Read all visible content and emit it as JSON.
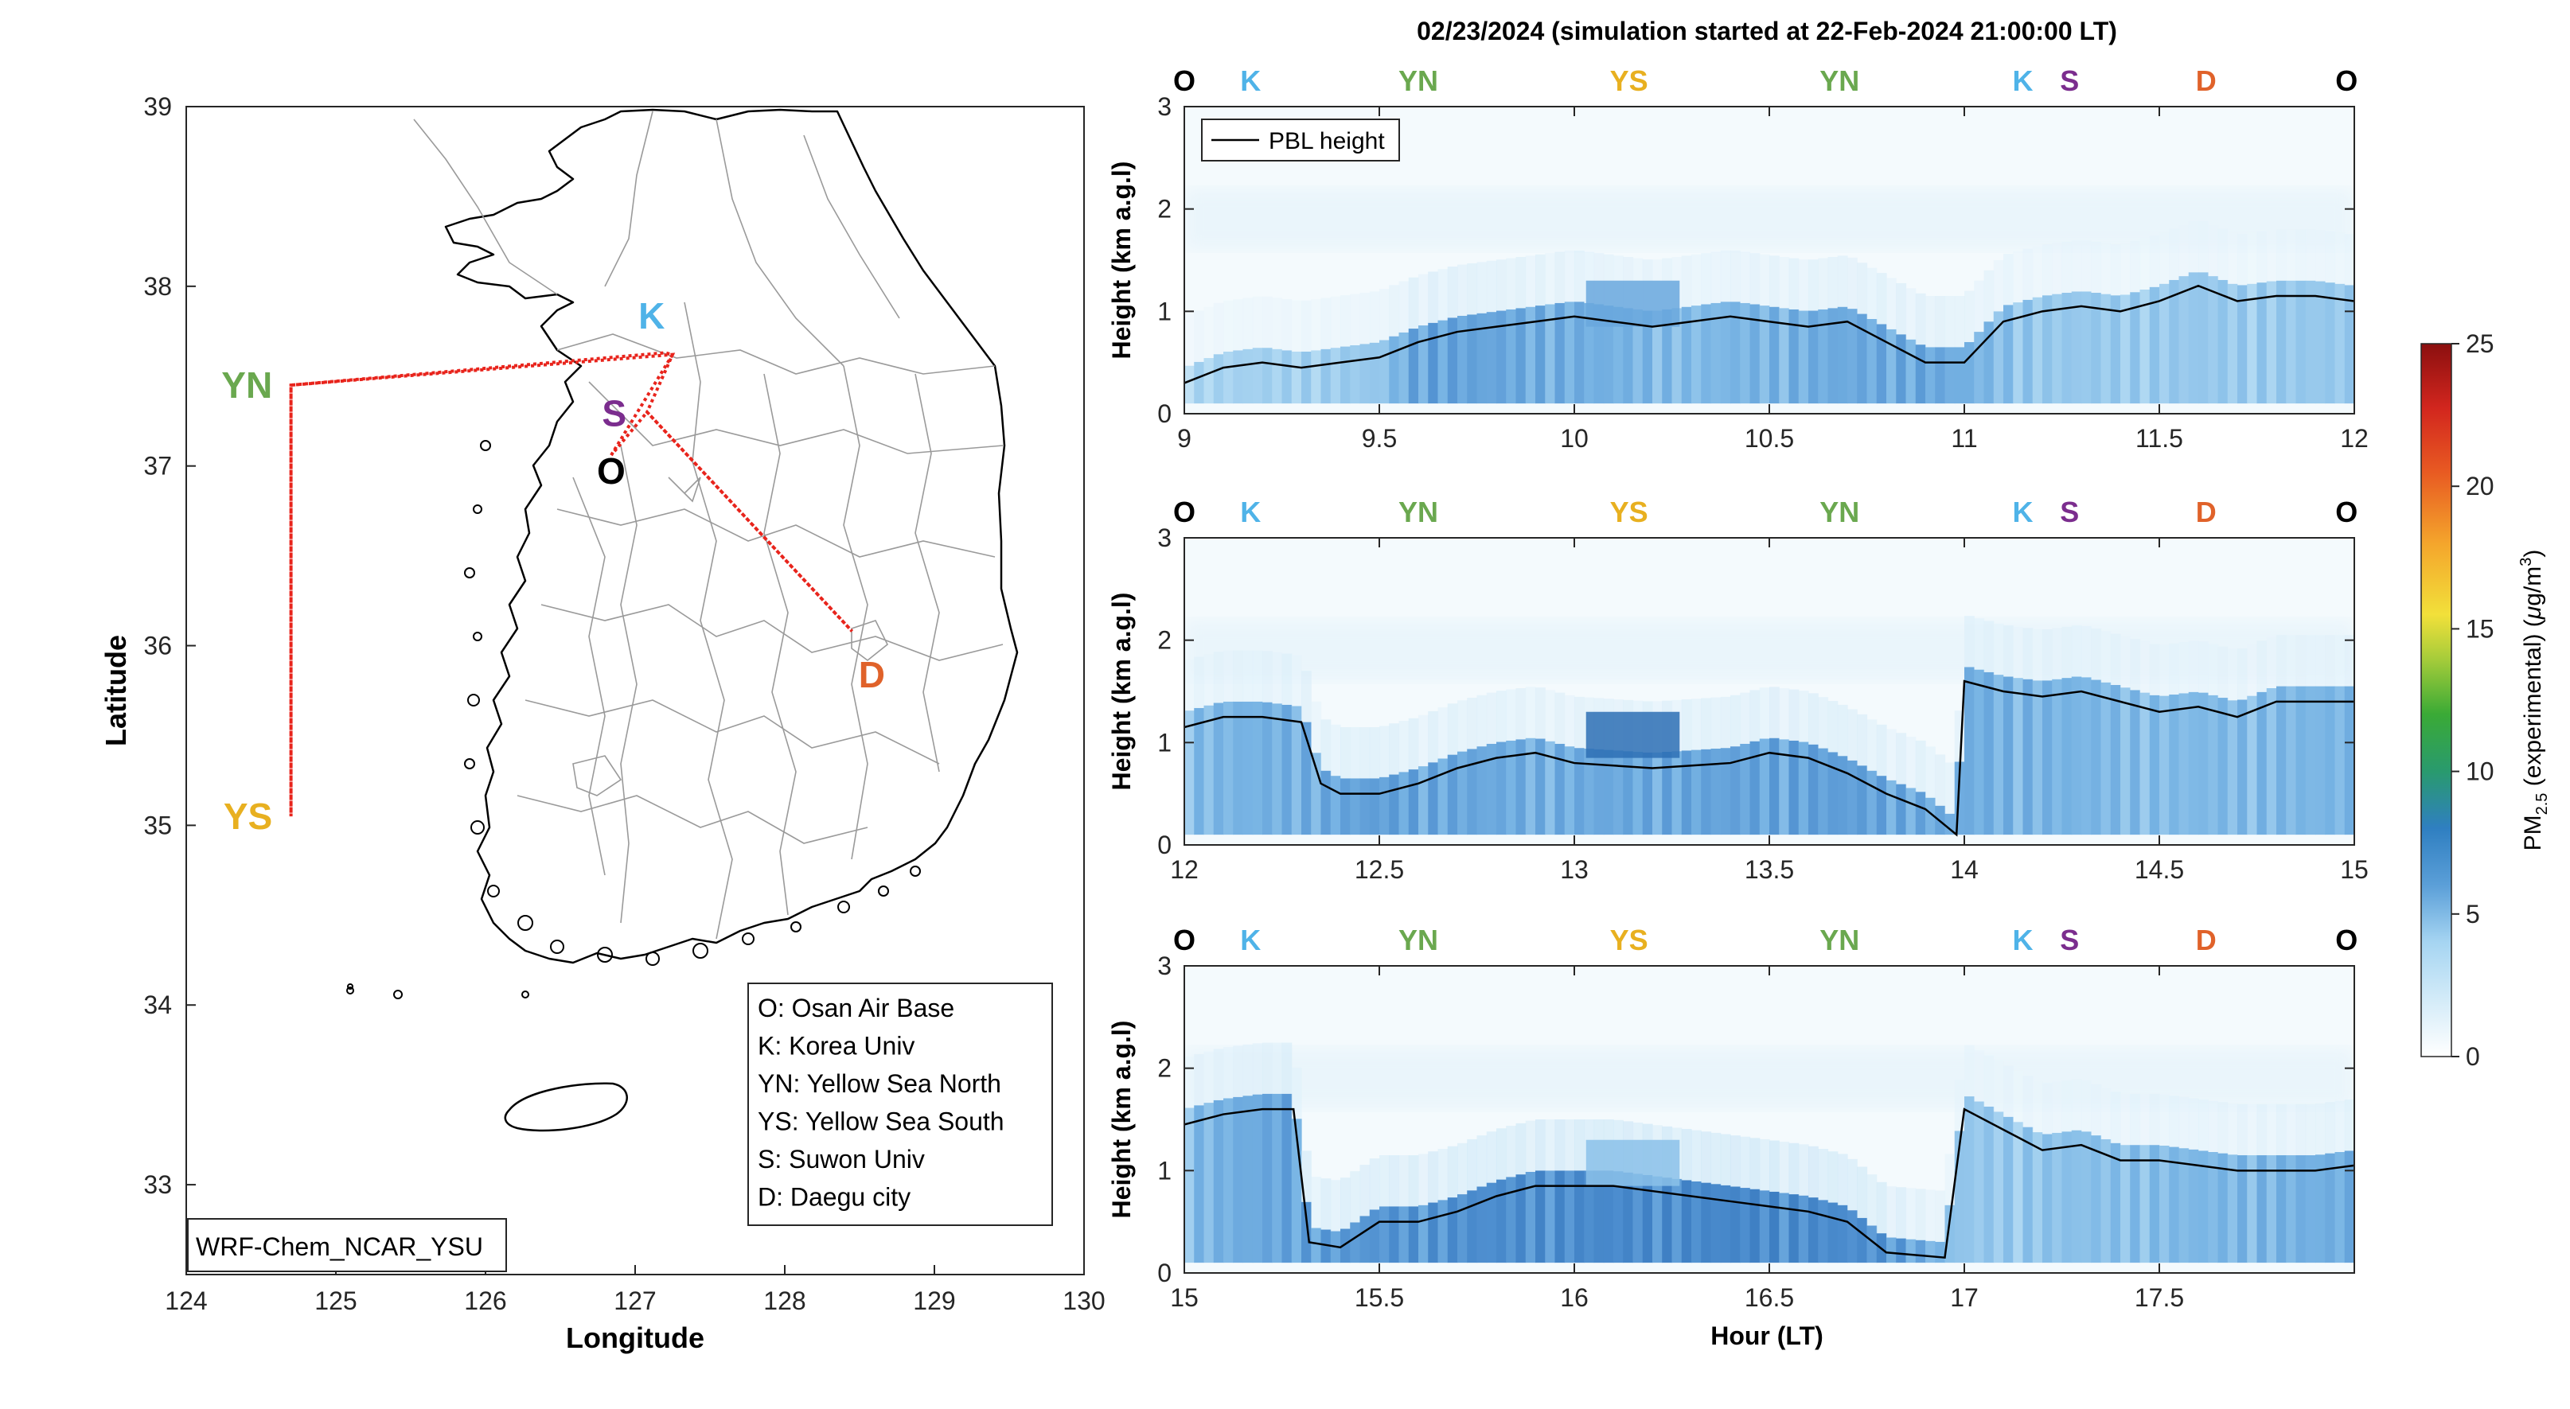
{
  "figure": {
    "title": "02/23/2024 (simulation started at 22-Feb-2024 21:00:00 LT)",
    "model_label": "WRF-Chem_NCAR_YSU"
  },
  "map": {
    "xlabel": "Longitude",
    "ylabel": "Latitude",
    "xlim": [
      124,
      130
    ],
    "ylim": [
      32.5,
      39
    ],
    "xticks": [
      "124",
      "125",
      "126",
      "127",
      "128",
      "129",
      "130"
    ],
    "yticks": [
      "33",
      "34",
      "35",
      "36",
      "37",
      "38",
      "39"
    ],
    "points": [
      {
        "code": "O",
        "lon": 126.84,
        "lat": 37.06,
        "color": "#000000"
      },
      {
        "code": "K",
        "lon": 127.11,
        "lat": 37.73,
        "color": "#4fb3e8"
      },
      {
        "code": "S",
        "lon": 126.86,
        "lat": 37.31,
        "color": "#7b2d8e"
      },
      {
        "code": "YN",
        "lon": 124.65,
        "lat": 37.45,
        "color": "#6aa84f"
      },
      {
        "code": "YS",
        "lon": 124.65,
        "lat": 35.05,
        "color": "#e8b020"
      },
      {
        "code": "D",
        "lon": 128.55,
        "lat": 35.9,
        "color": "#e0622a"
      }
    ],
    "track": [
      [
        126.84,
        37.06
      ],
      [
        127.25,
        37.62
      ],
      [
        127.2,
        37.63
      ],
      [
        124.7,
        37.45
      ],
      [
        124.7,
        35.05
      ],
      [
        124.7,
        37.45
      ],
      [
        127.25,
        37.62
      ],
      [
        127.08,
        37.3
      ],
      [
        128.45,
        36.08
      ],
      [
        127.08,
        37.3
      ],
      [
        126.84,
        37.06
      ]
    ],
    "legend": [
      "O: Osan Air Base",
      "K: Korea Univ",
      "YN: Yellow Sea North",
      "YS: Yellow Sea South",
      "S: Suwon Univ",
      "D: Daegu city"
    ]
  },
  "chart_data": {
    "type": "heatmap",
    "title": "02/23/2024 (simulation started at 22-Feb-2024 21:00:00 LT)",
    "ylabel": "Height (km a.g.l)",
    "xlabel": "Hour (LT)",
    "legend_entry": "PBL height",
    "colorbar": {
      "label_main": "PM",
      "label_sub": "2.5",
      "label_rest": " (experimental) (",
      "label_mu": "μ",
      "label_unit": "g/m",
      "label_exp": "3",
      "label_end": ")",
      "range": [
        0,
        25
      ],
      "ticks": [
        "0",
        "5",
        "10",
        "15",
        "20",
        "25"
      ]
    },
    "panels": [
      {
        "xlim": [
          9,
          12
        ],
        "ylim": [
          0,
          3
        ],
        "xticks": [
          "9",
          "9.5",
          "10",
          "10.5",
          "11",
          "11.5",
          "12"
        ],
        "yticks": [
          "0",
          "1",
          "2",
          "3"
        ],
        "stations": [
          {
            "code": "O",
            "x": 9.0
          },
          {
            "code": "K",
            "x": 9.17
          },
          {
            "code": "YN",
            "x": 9.6
          },
          {
            "code": "YS",
            "x": 10.14
          },
          {
            "code": "YN",
            "x": 10.68
          },
          {
            "code": "K",
            "x": 11.15
          },
          {
            "code": "S",
            "x": 11.27
          },
          {
            "code": "D",
            "x": 11.62
          },
          {
            "code": "O",
            "x": 11.98
          }
        ],
        "pbl": [
          [
            9.0,
            0.3
          ],
          [
            9.1,
            0.45
          ],
          [
            9.2,
            0.5
          ],
          [
            9.3,
            0.45
          ],
          [
            9.4,
            0.5
          ],
          [
            9.5,
            0.55
          ],
          [
            9.6,
            0.7
          ],
          [
            9.7,
            0.8
          ],
          [
            9.8,
            0.85
          ],
          [
            9.9,
            0.9
          ],
          [
            10.0,
            0.95
          ],
          [
            10.1,
            0.9
          ],
          [
            10.2,
            0.85
          ],
          [
            10.3,
            0.9
          ],
          [
            10.4,
            0.95
          ],
          [
            10.5,
            0.9
          ],
          [
            10.6,
            0.85
          ],
          [
            10.7,
            0.9
          ],
          [
            10.8,
            0.7
          ],
          [
            10.9,
            0.5
          ],
          [
            11.0,
            0.5
          ],
          [
            11.1,
            0.9
          ],
          [
            11.2,
            1.0
          ],
          [
            11.3,
            1.05
          ],
          [
            11.4,
            1.0
          ],
          [
            11.5,
            1.1
          ],
          [
            11.6,
            1.25
          ],
          [
            11.7,
            1.1
          ],
          [
            11.8,
            1.15
          ],
          [
            11.9,
            1.15
          ],
          [
            12.0,
            1.1
          ]
        ],
        "pm_profile": [
          [
            9.0,
            3.0
          ],
          [
            9.5,
            3.5
          ],
          [
            9.6,
            5.0
          ],
          [
            10.0,
            4.5
          ],
          [
            10.3,
            4.0
          ],
          [
            10.6,
            4.5
          ],
          [
            10.9,
            4.8
          ],
          [
            11.2,
            3.5
          ],
          [
            11.6,
            3.5
          ],
          [
            12.0,
            3.5
          ]
        ],
        "hotspots": [
          {
            "x": 10.15,
            "y": 1.1,
            "value": 5.0
          }
        ]
      },
      {
        "xlim": [
          12,
          15
        ],
        "ylim": [
          0,
          3
        ],
        "xticks": [
          "12",
          "12.5",
          "13",
          "13.5",
          "14",
          "14.5",
          "15"
        ],
        "yticks": [
          "0",
          "1",
          "2",
          "3"
        ],
        "stations": [
          {
            "code": "O",
            "x": 12.0
          },
          {
            "code": "K",
            "x": 12.17
          },
          {
            "code": "YN",
            "x": 12.6
          },
          {
            "code": "YS",
            "x": 13.14
          },
          {
            "code": "YN",
            "x": 13.68
          },
          {
            "code": "K",
            "x": 14.15
          },
          {
            "code": "S",
            "x": 14.27
          },
          {
            "code": "D",
            "x": 14.62
          },
          {
            "code": "O",
            "x": 14.98
          }
        ],
        "pbl": [
          [
            12.0,
            1.15
          ],
          [
            12.1,
            1.25
          ],
          [
            12.2,
            1.25
          ],
          [
            12.3,
            1.2
          ],
          [
            12.35,
            0.6
          ],
          [
            12.4,
            0.5
          ],
          [
            12.5,
            0.5
          ],
          [
            12.6,
            0.6
          ],
          [
            12.7,
            0.75
          ],
          [
            12.8,
            0.85
          ],
          [
            12.9,
            0.9
          ],
          [
            13.0,
            0.8
          ],
          [
            13.2,
            0.75
          ],
          [
            13.4,
            0.8
          ],
          [
            13.5,
            0.9
          ],
          [
            13.6,
            0.85
          ],
          [
            13.7,
            0.7
          ],
          [
            13.8,
            0.5
          ],
          [
            13.9,
            0.35
          ],
          [
            13.98,
            0.1
          ],
          [
            14.0,
            1.6
          ],
          [
            14.1,
            1.5
          ],
          [
            14.2,
            1.45
          ],
          [
            14.3,
            1.5
          ],
          [
            14.4,
            1.4
          ],
          [
            14.5,
            1.3
          ],
          [
            14.6,
            1.35
          ],
          [
            14.7,
            1.25
          ],
          [
            14.8,
            1.4
          ],
          [
            14.9,
            1.4
          ],
          [
            15.0,
            1.4
          ]
        ],
        "pm_profile": [
          [
            12.0,
            4.0
          ],
          [
            12.3,
            4.5
          ],
          [
            12.5,
            5.0
          ],
          [
            12.9,
            4.5
          ],
          [
            13.3,
            4.8
          ],
          [
            13.7,
            5.0
          ],
          [
            14.0,
            4.5
          ],
          [
            14.5,
            4.0
          ],
          [
            15.0,
            4.2
          ]
        ],
        "hotspots": [
          {
            "x": 13.15,
            "y": 1.1,
            "value": 8.0
          }
        ]
      },
      {
        "xlim": [
          15,
          18
        ],
        "ylim": [
          0,
          3
        ],
        "xticks": [
          "15",
          "15.5",
          "16",
          "16.5",
          "17",
          "17.5"
        ],
        "yticks": [
          "0",
          "1",
          "2",
          "3"
        ],
        "stations": [
          {
            "code": "O",
            "x": 15.0
          },
          {
            "code": "K",
            "x": 15.17
          },
          {
            "code": "YN",
            "x": 15.6
          },
          {
            "code": "YS",
            "x": 16.14
          },
          {
            "code": "YN",
            "x": 16.68
          },
          {
            "code": "K",
            "x": 17.15
          },
          {
            "code": "S",
            "x": 17.27
          },
          {
            "code": "D",
            "x": 17.62
          },
          {
            "code": "O",
            "x": 17.98
          }
        ],
        "pbl": [
          [
            15.0,
            1.45
          ],
          [
            15.1,
            1.55
          ],
          [
            15.2,
            1.6
          ],
          [
            15.28,
            1.6
          ],
          [
            15.32,
            0.3
          ],
          [
            15.4,
            0.25
          ],
          [
            15.5,
            0.5
          ],
          [
            15.6,
            0.5
          ],
          [
            15.7,
            0.6
          ],
          [
            15.8,
            0.75
          ],
          [
            15.9,
            0.85
          ],
          [
            16.0,
            0.85
          ],
          [
            16.1,
            0.85
          ],
          [
            16.2,
            0.8
          ],
          [
            16.3,
            0.75
          ],
          [
            16.4,
            0.7
          ],
          [
            16.5,
            0.65
          ],
          [
            16.6,
            0.6
          ],
          [
            16.7,
            0.5
          ],
          [
            16.8,
            0.2
          ],
          [
            16.95,
            0.15
          ],
          [
            17.0,
            1.6
          ],
          [
            17.1,
            1.4
          ],
          [
            17.2,
            1.2
          ],
          [
            17.3,
            1.25
          ],
          [
            17.4,
            1.1
          ],
          [
            17.5,
            1.1
          ],
          [
            17.6,
            1.05
          ],
          [
            17.7,
            1.0
          ],
          [
            17.8,
            1.0
          ],
          [
            17.9,
            1.0
          ],
          [
            18.0,
            1.05
          ]
        ],
        "pm_profile": [
          [
            15.0,
            4.0
          ],
          [
            15.3,
            5.0
          ],
          [
            15.6,
            5.5
          ],
          [
            16.0,
            5.8
          ],
          [
            16.5,
            6.0
          ],
          [
            16.8,
            5.5
          ],
          [
            17.0,
            3.5
          ],
          [
            17.5,
            4.0
          ],
          [
            18.0,
            4.5
          ]
        ],
        "hotspots": [
          {
            "x": 16.15,
            "y": 1.1,
            "value": 4.0
          }
        ]
      }
    ]
  }
}
